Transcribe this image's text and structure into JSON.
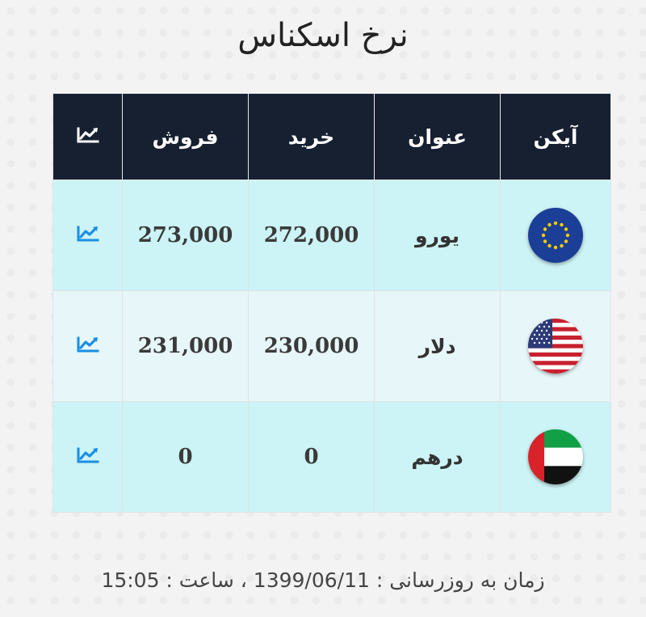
{
  "title": "نرخ اسکناس",
  "table": {
    "headers": {
      "icon": "آیکن",
      "title": "عنوان",
      "buy": "خرید",
      "sell": "فروش",
      "chart": "chart-icon"
    },
    "rows": [
      {
        "name": "یورو",
        "buy": "272,000",
        "sell": "273,000",
        "flag": "eu-flag-icon"
      },
      {
        "name": "دلار",
        "buy": "230,000",
        "sell": "231,000",
        "flag": "us-flag-icon"
      },
      {
        "name": "درهم",
        "buy": "0",
        "sell": "0",
        "flag": "uae-flag-icon"
      }
    ]
  },
  "footer": {
    "text": "زمان به روزرسانی : 1399/06/11 ، ساعت : 15:05"
  },
  "colors": {
    "header_bg": "#162031",
    "row_odd": "#ccf3f5",
    "row_even": "#e7f6f8",
    "chart_icon": "#1a8fe3"
  }
}
